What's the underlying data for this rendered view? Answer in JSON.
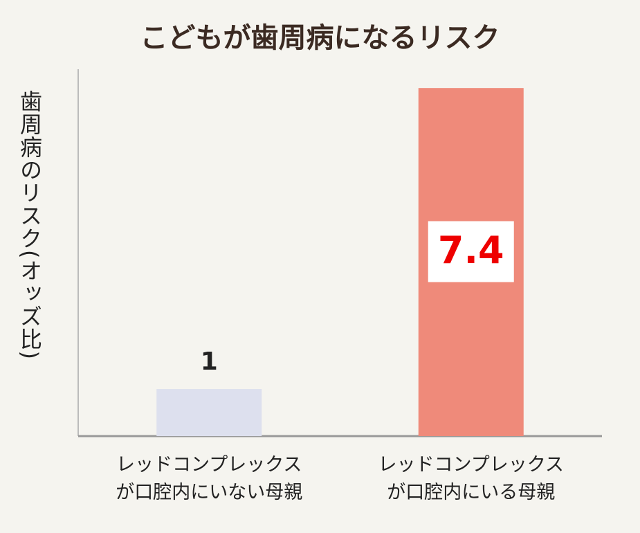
{
  "chart_data": {
    "type": "bar",
    "title": "こどもが歯周病になるリスク",
    "y_label": "歯周病のリスク(オッズ比)",
    "categories": [
      "レッドコンプレックス\nが口腔内にいない母親",
      "レッドコンプレックス\nが口腔内にいる母親"
    ],
    "values": [
      1,
      7.4
    ],
    "colors": [
      "#dde0ee",
      "#ef8a7a"
    ],
    "ylim": [
      0,
      7.8
    ]
  }
}
